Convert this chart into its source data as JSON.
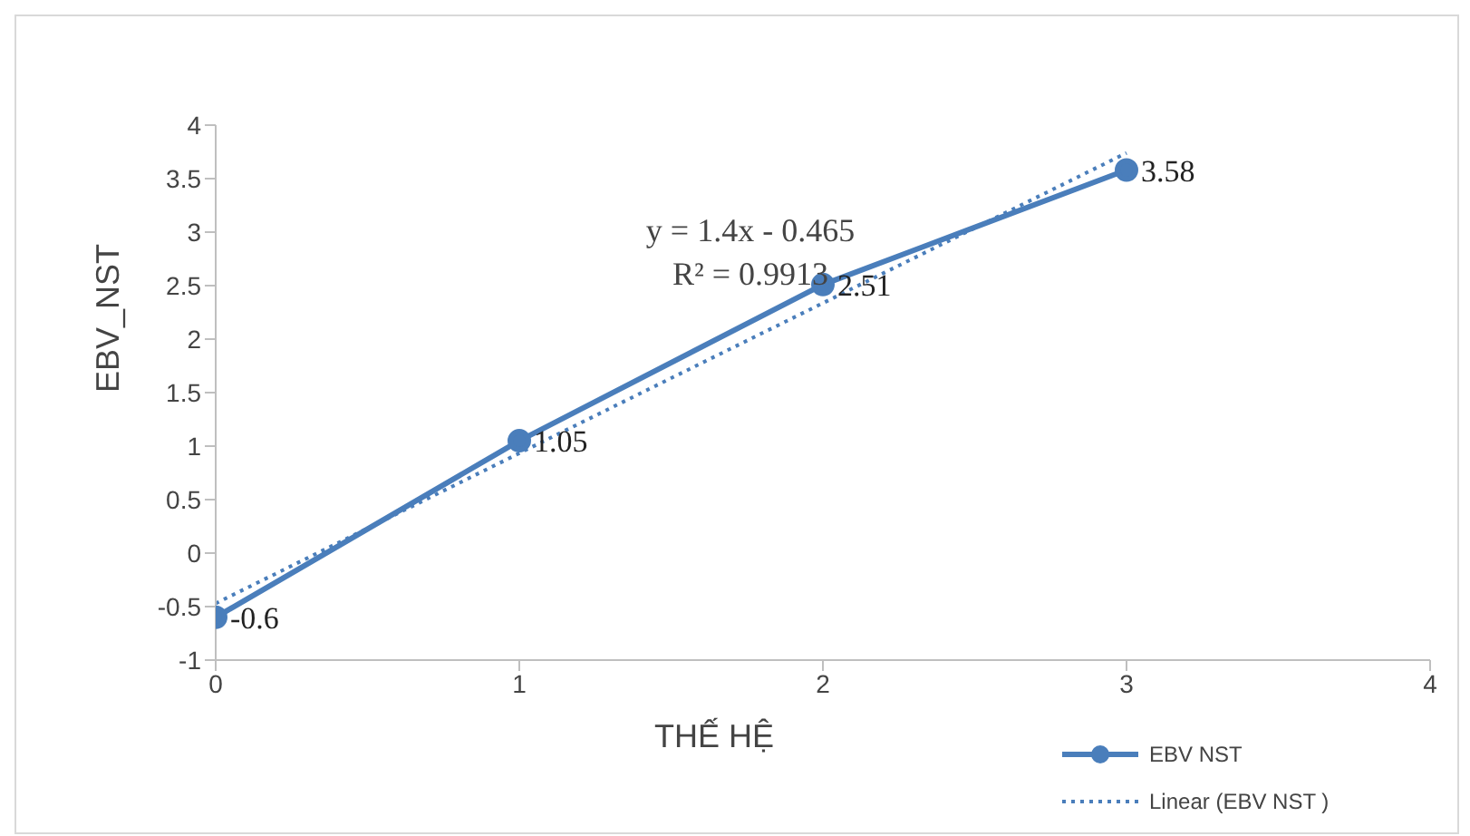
{
  "chart_data": {
    "type": "line",
    "xlabel": "THẾ HỆ",
    "ylabel": "EBV_NST",
    "xlim": [
      0,
      4
    ],
    "xticks": [
      0,
      1,
      2,
      3,
      4
    ],
    "ylim": [
      -1,
      4
    ],
    "yticks": [
      -1,
      -0.5,
      0,
      0.5,
      1,
      1.5,
      2,
      2.5,
      3,
      3.5,
      4
    ],
    "annotations": [
      "y = 1.4x - 0.465",
      "R² = 0.9913"
    ],
    "legend": "bottom right",
    "grid": false,
    "series": [
      {
        "name": "EBV NST",
        "color": "#4a7ebb",
        "marker": "circle",
        "line_style": "solid",
        "x": [
          0,
          1,
          2,
          3
        ],
        "values": [
          -0.6,
          1.05,
          2.51,
          3.58
        ],
        "value_labels": [
          "-0.6",
          "1.05",
          "2.51",
          "3.58"
        ]
      },
      {
        "name": "Linear (EBV NST )",
        "type": "line",
        "color": "#4a7ebb",
        "marker": "none",
        "line_style": "dotted",
        "x": [
          0,
          3
        ],
        "values": [
          -0.47,
          3.74
        ]
      }
    ]
  }
}
